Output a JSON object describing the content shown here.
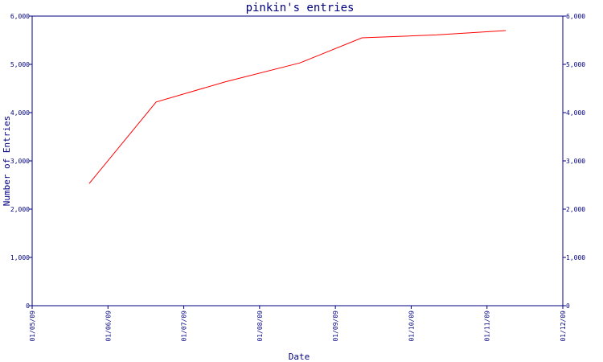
{
  "chart_data": {
    "type": "line",
    "title": "pinkin's entries",
    "xlabel": "Date",
    "ylabel": "Number of Entries",
    "x_ticks": [
      "01/05/09",
      "01/06/09",
      "01/07/09",
      "01/08/09",
      "01/09/09",
      "01/10/09",
      "01/11/09",
      "01/12/09"
    ],
    "y_ticks": [
      "0",
      "1,000",
      "2,000",
      "3,000",
      "4,000",
      "5,000",
      "6,000"
    ],
    "ylim": [
      0,
      6000
    ],
    "xlim": [
      "2009-05-01",
      "2009-12-01"
    ],
    "grid": false,
    "legend": "none",
    "colors": {
      "axis": "#000080",
      "series": "#ff0000",
      "text": "#000080"
    },
    "series": [
      {
        "x": [
          "2009-05-24",
          "2009-06-20",
          "2009-07-18",
          "2009-08-17",
          "2009-09-11",
          "2009-10-11",
          "2009-11-08"
        ],
        "values": [
          2530,
          4220,
          4640,
          5030,
          5550,
          5610,
          5700
        ]
      }
    ]
  }
}
